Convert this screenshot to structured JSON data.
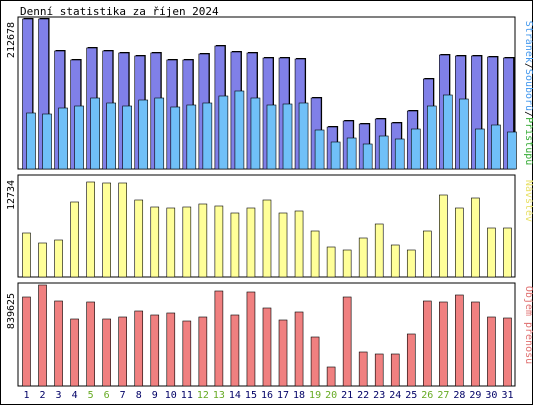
{
  "title": "Denní statistika za říjen 2024",
  "colors": {
    "pages": "#8080e8",
    "files": "#70c0f8",
    "visits": "#ffff99",
    "bytes": "#f08080",
    "weekend": "#66aa22",
    "weekday": "#000066",
    "legend_hits": "#33aa33",
    "legend_files": "#4499ee",
    "legend_pages": "#4a4ab0",
    "legend_visits": "#e8e066",
    "legend_bytes": "#e07070"
  },
  "chart_data": [
    {
      "type": "bar",
      "panel": "hits",
      "ymax_label": "212678",
      "ylim": [
        0,
        212678
      ],
      "legend": {
        "hits": "Přístupů",
        "files": "Souborů",
        "pages": "Stránek",
        "sep": "/"
      },
      "categories": [
        "1",
        "2",
        "3",
        "4",
        "5",
        "6",
        "7",
        "8",
        "9",
        "10",
        "11",
        "12",
        "13",
        "14",
        "15",
        "16",
        "17",
        "18",
        "19",
        "20",
        "21",
        "22",
        "23",
        "24",
        "25",
        "26",
        "27",
        "28",
        "29",
        "30",
        "31"
      ],
      "weekend_days": [
        "5",
        "6",
        "12",
        "13",
        "19",
        "20",
        "26",
        "27"
      ],
      "series": [
        {
          "name": "Přístupů",
          "values": [
            212678,
            212678,
            168000,
            155000,
            171000,
            167000,
            165000,
            160000,
            164000,
            155000,
            155000,
            163000,
            174000,
            166000,
            165000,
            157000,
            157000,
            156000,
            100000,
            60000,
            68000,
            64000,
            71000,
            65000,
            82000,
            127000,
            162000,
            160000,
            160000,
            159000,
            157000
          ]
        },
        {
          "name": "Souborů",
          "values": [
            210000,
            210000,
            166000,
            153000,
            169000,
            165000,
            163000,
            158000,
            162000,
            153000,
            153000,
            161000,
            172000,
            164000,
            163000,
            155000,
            155000,
            154000,
            98000,
            58000,
            66000,
            62000,
            69000,
            63000,
            80000,
            125000,
            160000,
            158000,
            158000,
            157000,
            155000
          ]
        },
        {
          "name": "Stránek",
          "values": [
            79000,
            78000,
            87000,
            89000,
            101000,
            94000,
            90000,
            98000,
            100000,
            88000,
            91000,
            94000,
            103000,
            110000,
            101000,
            91000,
            92000,
            93000,
            55000,
            38000,
            44000,
            36000,
            47000,
            42000,
            57000,
            90000,
            105000,
            99000,
            57000,
            62000,
            52000
          ]
        }
      ]
    },
    {
      "type": "bar",
      "panel": "visits",
      "ymax_label": "12734",
      "ylim": [
        0,
        12734
      ],
      "legend": {
        "visits": "Návštěv"
      },
      "categories": [
        "1",
        "2",
        "3",
        "4",
        "5",
        "6",
        "7",
        "8",
        "9",
        "10",
        "11",
        "12",
        "13",
        "14",
        "15",
        "16",
        "17",
        "18",
        "19",
        "20",
        "21",
        "22",
        "23",
        "24",
        "25",
        "26",
        "27",
        "28",
        "29",
        "30",
        "31"
      ],
      "series": [
        {
          "name": "Návštěv",
          "values": [
            5550,
            4350,
            4750,
            9500,
            12100,
            12000,
            12000,
            9800,
            8900,
            8800,
            8900,
            9300,
            9000,
            8200,
            8800,
            9800,
            8100,
            8400,
            5900,
            3800,
            3500,
            5000,
            6700,
            4100,
            3450,
            5900,
            10400,
            8800,
            10000,
            6300,
            6300
          ]
        }
      ]
    },
    {
      "type": "bar",
      "panel": "bytes",
      "ymax_label": "839625",
      "ylim": [
        0,
        839625
      ],
      "legend": {
        "bytes": "Objem přenosu"
      },
      "categories": [
        "1",
        "2",
        "3",
        "4",
        "5",
        "6",
        "7",
        "8",
        "9",
        "10",
        "11",
        "12",
        "13",
        "14",
        "15",
        "16",
        "17",
        "18",
        "19",
        "20",
        "21",
        "22",
        "23",
        "24",
        "25",
        "26",
        "27",
        "28",
        "29",
        "30",
        "31"
      ],
      "series": [
        {
          "name": "Objem přenosu",
          "values": [
            740000,
            839625,
            705000,
            555000,
            697000,
            555000,
            571000,
            620000,
            590000,
            607000,
            541000,
            574000,
            788000,
            593000,
            778000,
            650000,
            545000,
            619000,
            407000,
            157000,
            740000,
            281000,
            269000,
            266000,
            434000,
            708000,
            701000,
            760000,
            700000,
            575000,
            564000
          ]
        }
      ]
    }
  ]
}
